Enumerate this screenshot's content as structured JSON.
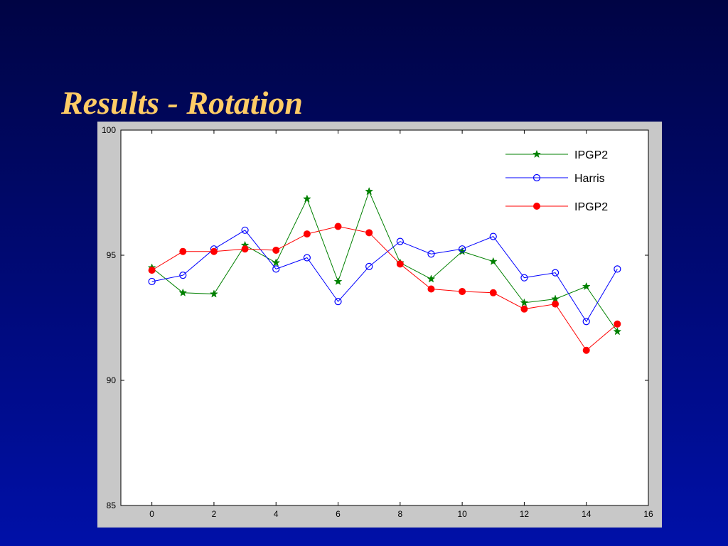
{
  "slide": {
    "title": "Results - Rotation"
  },
  "chart_data": {
    "type": "line",
    "title": "",
    "xlabel": "",
    "ylabel": "",
    "xlim": [
      -1,
      16
    ],
    "ylim": [
      85,
      100
    ],
    "xticks": [
      0,
      2,
      4,
      6,
      8,
      10,
      12,
      14,
      16
    ],
    "yticks": [
      85,
      90,
      95,
      100
    ],
    "grid": false,
    "legend_position": "top-right",
    "x": [
      0,
      1,
      2,
      3,
      4,
      5,
      6,
      7,
      8,
      9,
      10,
      11,
      12,
      13,
      14,
      15
    ],
    "series": [
      {
        "name": "IPGP2",
        "color": "#008000",
        "marker": "star",
        "values": [
          94.5,
          93.5,
          93.45,
          95.4,
          94.7,
          97.25,
          93.95,
          97.55,
          94.7,
          94.05,
          95.15,
          94.75,
          93.1,
          93.25,
          93.75,
          91.95
        ]
      },
      {
        "name": "Harris",
        "color": "#0000ff",
        "marker": "circle-open",
        "values": [
          93.95,
          94.2,
          95.25,
          96.0,
          94.45,
          94.9,
          93.15,
          94.55,
          95.55,
          95.05,
          95.25,
          95.75,
          94.1,
          94.3,
          92.35,
          94.45
        ]
      },
      {
        "name": "IPGP2",
        "color": "#ff0000",
        "marker": "circle-filled",
        "values": [
          94.4,
          95.15,
          95.15,
          95.25,
          95.2,
          95.85,
          96.15,
          95.9,
          94.65,
          93.65,
          93.55,
          93.5,
          92.85,
          93.05,
          91.2,
          92.25
        ]
      }
    ]
  }
}
